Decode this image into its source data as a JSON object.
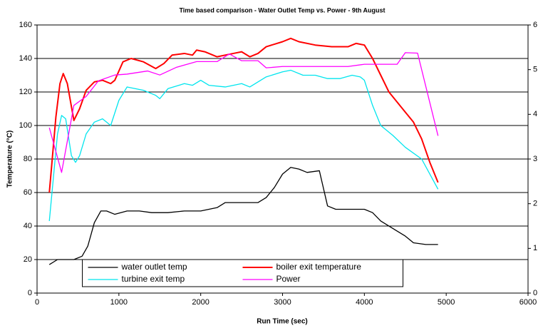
{
  "chart_data": {
    "type": "line",
    "title": "Time based comparison - Water Outlet Temp vs. Power  - 9th August",
    "x_label": "Run Time (sec)",
    "y_label": "Temperature (°C)",
    "xlim": [
      0,
      6000
    ],
    "xticks": [
      0,
      1000,
      2000,
      3000,
      4000,
      5000,
      6000
    ],
    "ylim": [
      0,
      160
    ],
    "yticks": [
      0,
      20,
      40,
      60,
      80,
      100,
      120,
      140,
      160
    ],
    "y2lim": [
      0,
      6
    ],
    "y2ticks": [
      0,
      1,
      2,
      3,
      4,
      5,
      6
    ],
    "grid": true,
    "legend": "bottom-center",
    "series": [
      {
        "name": "water outlet temp",
        "color": "#000000",
        "x": [
          150,
          250,
          350,
          450,
          550,
          620,
          700,
          780,
          850,
          950,
          1100,
          1250,
          1400,
          1600,
          1800,
          2000,
          2200,
          2300,
          2500,
          2700,
          2800,
          2900,
          3000,
          3100,
          3200,
          3300,
          3450,
          3550,
          3650,
          3800,
          4000,
          4100,
          4200,
          4400,
          4500,
          4600,
          4750,
          4900
        ],
        "values": [
          17,
          20,
          20,
          20,
          22,
          28,
          42,
          49,
          49,
          47,
          49,
          49,
          48,
          48,
          49,
          49,
          51,
          54,
          54,
          54,
          57,
          63,
          71,
          75,
          74,
          72,
          73,
          52,
          50,
          50,
          50,
          48,
          43,
          37,
          34,
          30,
          29,
          29
        ]
      },
      {
        "name": "boiler exit temperature",
        "color": "#ff0000",
        "x": [
          150,
          230,
          280,
          320,
          370,
          450,
          520,
          600,
          700,
          800,
          900,
          950,
          1050,
          1150,
          1300,
          1450,
          1550,
          1650,
          1800,
          1900,
          1950,
          2050,
          2200,
          2400,
          2500,
          2600,
          2700,
          2800,
          3000,
          3100,
          3200,
          3400,
          3600,
          3800,
          3900,
          4000,
          4100,
          4200,
          4300,
          4500,
          4600,
          4700,
          4800,
          4900
        ],
        "values": [
          60,
          105,
          125,
          131,
          125,
          103,
          110,
          121,
          126,
          127,
          125,
          127,
          138,
          140,
          138,
          134,
          137,
          142,
          143,
          142,
          145,
          144,
          141,
          143,
          144,
          141,
          143,
          147,
          150,
          152,
          150,
          148,
          147,
          147,
          149,
          148,
          140,
          130,
          120,
          108,
          102,
          92,
          78,
          66
        ]
      },
      {
        "name": "turbine exit temp",
        "color": "#00e5ee",
        "x": [
          150,
          250,
          300,
          350,
          420,
          470,
          520,
          600,
          700,
          800,
          900,
          1000,
          1100,
          1300,
          1450,
          1500,
          1600,
          1800,
          1900,
          2000,
          2100,
          2300,
          2500,
          2600,
          2800,
          3000,
          3100,
          3250,
          3400,
          3550,
          3700,
          3850,
          3950,
          4000,
          4100,
          4200,
          4350,
          4500,
          4700,
          4900
        ],
        "values": [
          43,
          95,
          106,
          104,
          82,
          78,
          82,
          95,
          102,
          104,
          100,
          115,
          123,
          121,
          118,
          116,
          122,
          125,
          124,
          127,
          124,
          123,
          125,
          123,
          129,
          132,
          133,
          130,
          130,
          128,
          128,
          130,
          129,
          127,
          112,
          100,
          94,
          87,
          80,
          62
        ]
      },
      {
        "name": "Power",
        "color": "#ff00ff",
        "axis": "y2",
        "x": [
          150,
          300,
          450,
          600,
          750,
          950,
          1100,
          1350,
          1500,
          1700,
          1950,
          2200,
          2350,
          2500,
          2700,
          2800,
          3000,
          3200,
          3600,
          3800,
          4000,
          4200,
          4400,
          4500,
          4650,
          4900
        ],
        "values": [
          3.7,
          2.7,
          4.2,
          4.4,
          4.75,
          4.88,
          4.9,
          4.97,
          4.88,
          5.05,
          5.18,
          5.18,
          5.35,
          5.2,
          5.2,
          5.04,
          5.07,
          5.07,
          5.07,
          5.07,
          5.12,
          5.12,
          5.12,
          5.38,
          5.37,
          3.52
        ]
      }
    ]
  }
}
